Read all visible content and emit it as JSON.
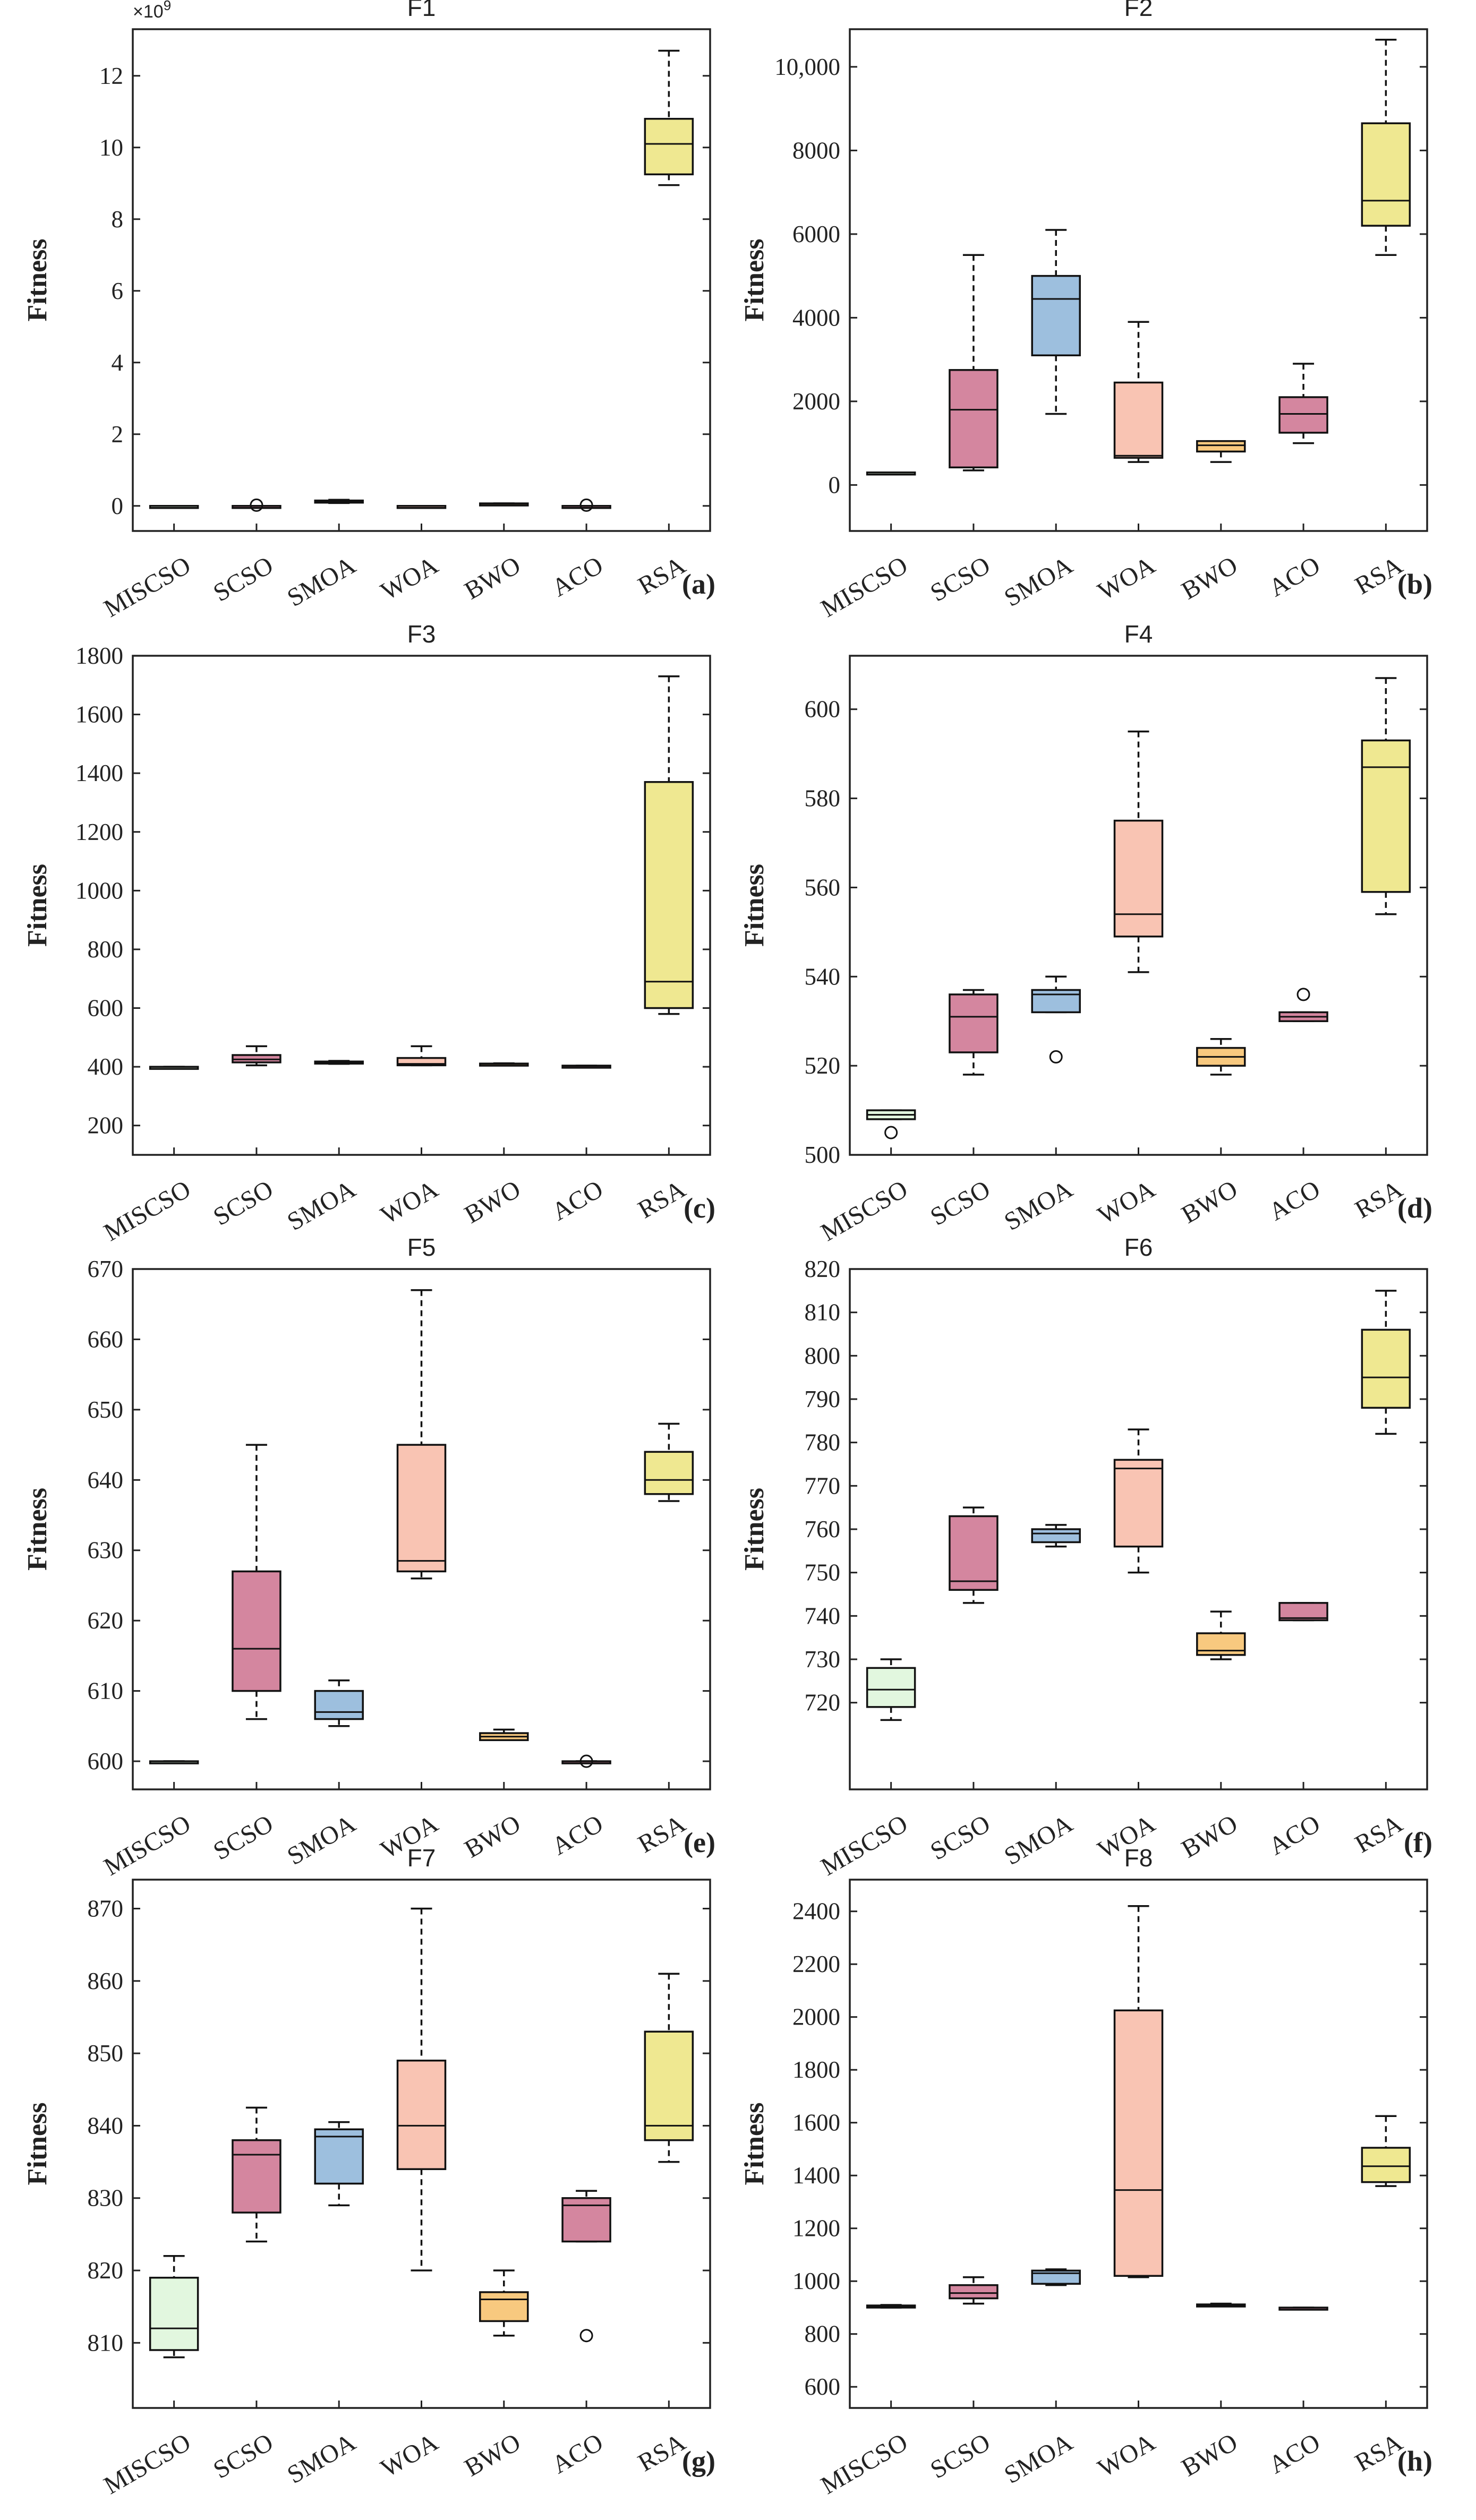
{
  "colors": {
    "MISCSO": "#e2f7df",
    "SCSO": "#d4869f",
    "SMOA": "#9dbfde",
    "WOA": "#f9c4b3",
    "BWO": "#f8c97f",
    "ACO": "#d4869f",
    "RSA": "#efe891",
    "axis": "#222222"
  },
  "chart_data": [
    {
      "type": "box",
      "title": "F1",
      "panel_label": "(a)",
      "ylabel": "Fitness",
      "multiplier": "×10",
      "multiplier_exp": "9",
      "ylim": [
        -0.7,
        13.3
      ],
      "yticks": [
        0,
        2,
        4,
        6,
        8,
        10,
        12
      ],
      "ytick_labels": [
        "0",
        "2",
        "4",
        "6",
        "8",
        "10",
        "12"
      ],
      "categories": [
        "MISCSO",
        "SCSO",
        "SMOA",
        "WOA",
        "BWO",
        "ACO",
        "RSA"
      ],
      "boxes": [
        {
          "min": 0.0,
          "q1": 0.0,
          "median": 0.0,
          "q3": 0.0,
          "max": 0.0,
          "outliers": []
        },
        {
          "min": 0.0,
          "q1": 0.0,
          "median": 0.0,
          "q3": 0.0,
          "max": 0.0,
          "outliers": [
            0.02
          ]
        },
        {
          "min": 0.08,
          "q1": 0.09,
          "median": 0.12,
          "q3": 0.15,
          "max": 0.17,
          "outliers": []
        },
        {
          "min": 0.0,
          "q1": 0.0,
          "median": 0.0,
          "q3": 0.0,
          "max": 0.0,
          "outliers": []
        },
        {
          "min": 0.05,
          "q1": 0.05,
          "median": 0.06,
          "q3": 0.07,
          "max": 0.07,
          "outliers": []
        },
        {
          "min": 0.0,
          "q1": 0.0,
          "median": 0.0,
          "q3": 0.0,
          "max": 0.0,
          "outliers": [
            0.02
          ]
        },
        {
          "min": 8.95,
          "q1": 9.25,
          "median": 10.1,
          "q3": 10.8,
          "max": 12.7,
          "outliers": []
        }
      ]
    },
    {
      "type": "box",
      "title": "F2",
      "panel_label": "(b)",
      "ylabel": "Fitness",
      "ylim": [
        -1100,
        10900
      ],
      "yticks": [
        0,
        2000,
        4000,
        6000,
        8000,
        10000
      ],
      "ytick_labels": [
        "0",
        "2000",
        "4000",
        "6000",
        "8000",
        "10,000"
      ],
      "categories": [
        "MISCSO",
        "SCSO",
        "SMOA",
        "WOA",
        "BWO",
        "ACO",
        "RSA"
      ],
      "boxes": [
        {
          "min": 300,
          "q1": 300,
          "median": 300,
          "q3": 300,
          "max": 300,
          "outliers": []
        },
        {
          "min": 350,
          "q1": 420,
          "median": 1800,
          "q3": 2750,
          "max": 5500,
          "outliers": []
        },
        {
          "min": 1700,
          "q1": 3100,
          "median": 4450,
          "q3": 5000,
          "max": 6100,
          "outliers": []
        },
        {
          "min": 550,
          "q1": 650,
          "median": 700,
          "q3": 2450,
          "max": 3900,
          "outliers": []
        },
        {
          "min": 550,
          "q1": 800,
          "median": 950,
          "q3": 1050,
          "max": 1050,
          "outliers": []
        },
        {
          "min": 1000,
          "q1": 1250,
          "median": 1700,
          "q3": 2100,
          "max": 2900,
          "outliers": []
        },
        {
          "min": 5500,
          "q1": 6200,
          "median": 6800,
          "q3": 8650,
          "max": 10650,
          "outliers": []
        }
      ]
    },
    {
      "type": "box",
      "title": "F3",
      "panel_label": "(c)",
      "ylabel": "Fitness",
      "ylim": [
        100,
        1800
      ],
      "yticks": [
        200,
        400,
        600,
        800,
        1000,
        1200,
        1400,
        1600,
        1800
      ],
      "ytick_labels": [
        "200",
        "400",
        "600",
        "800",
        "1000",
        "1200",
        "1400",
        "1600",
        "1800"
      ],
      "categories": [
        "MISCSO",
        "SCSO",
        "SMOA",
        "WOA",
        "BWO",
        "ACO",
        "RSA"
      ],
      "boxes": [
        {
          "min": 400,
          "q1": 400,
          "median": 400,
          "q3": 400,
          "max": 400,
          "outliers": []
        },
        {
          "min": 405,
          "q1": 415,
          "median": 425,
          "q3": 440,
          "max": 470,
          "outliers": []
        },
        {
          "min": 410,
          "q1": 412,
          "median": 415,
          "q3": 418,
          "max": 420,
          "outliers": []
        },
        {
          "min": 405,
          "q1": 405,
          "median": 410,
          "q3": 430,
          "max": 470,
          "outliers": []
        },
        {
          "min": 408,
          "q1": 409,
          "median": 410,
          "q3": 411,
          "max": 412,
          "outliers": []
        },
        {
          "min": 403,
          "q1": 403,
          "median": 403,
          "q3": 404,
          "max": 404,
          "outliers": []
        },
        {
          "min": 580,
          "q1": 600,
          "median": 690,
          "q3": 1370,
          "max": 1730,
          "outliers": []
        }
      ]
    },
    {
      "type": "box",
      "title": "F4",
      "panel_label": "(d)",
      "ylabel": "Fitness",
      "ylim": [
        500,
        612
      ],
      "yticks": [
        500,
        520,
        540,
        560,
        580,
        600
      ],
      "ytick_labels": [
        "500",
        "520",
        "540",
        "560",
        "580",
        "600"
      ],
      "categories": [
        "MISCSO",
        "SCSO",
        "SMOA",
        "WOA",
        "BWO",
        "ACO",
        "RSA"
      ],
      "boxes": [
        {
          "min": 508,
          "q1": 508,
          "median": 509,
          "q3": 510,
          "max": 510,
          "outliers": [
            505
          ]
        },
        {
          "min": 518,
          "q1": 523,
          "median": 531,
          "q3": 536,
          "max": 537,
          "outliers": []
        },
        {
          "min": 532,
          "q1": 532,
          "median": 536,
          "q3": 537,
          "max": 540,
          "outliers": [
            522
          ]
        },
        {
          "min": 541,
          "q1": 549,
          "median": 554,
          "q3": 575,
          "max": 595,
          "outliers": []
        },
        {
          "min": 518,
          "q1": 520,
          "median": 522,
          "q3": 524,
          "max": 526,
          "outliers": []
        },
        {
          "min": 530,
          "q1": 530,
          "median": 531,
          "q3": 532,
          "max": 532,
          "outliers": [
            536
          ]
        },
        {
          "min": 554,
          "q1": 559,
          "median": 587,
          "q3": 593,
          "max": 607,
          "outliers": []
        }
      ]
    },
    {
      "type": "box",
      "title": "F5",
      "panel_label": "(e)",
      "ylabel": "Fitness",
      "ylim": [
        596,
        670
      ],
      "yticks": [
        600,
        610,
        620,
        630,
        640,
        650,
        660,
        670
      ],
      "ytick_labels": [
        "600",
        "610",
        "620",
        "630",
        "640",
        "650",
        "660",
        "670"
      ],
      "categories": [
        "MISCSO",
        "SCSO",
        "SMOA",
        "WOA",
        "BWO",
        "ACO",
        "RSA"
      ],
      "boxes": [
        {
          "min": 600,
          "q1": 600,
          "median": 600,
          "q3": 600,
          "max": 600,
          "outliers": []
        },
        {
          "min": 606,
          "q1": 610,
          "median": 616,
          "q3": 627,
          "max": 645,
          "outliers": []
        },
        {
          "min": 605,
          "q1": 606,
          "median": 607,
          "q3": 610,
          "max": 611.5,
          "outliers": []
        },
        {
          "min": 626,
          "q1": 627,
          "median": 628.5,
          "q3": 645,
          "max": 667,
          "outliers": []
        },
        {
          "min": 603,
          "q1": 603,
          "median": 603.5,
          "q3": 604,
          "max": 604.5,
          "outliers": []
        },
        {
          "min": 600,
          "q1": 600,
          "median": 600,
          "q3": 600,
          "max": 600,
          "outliers": [
            600
          ]
        },
        {
          "min": 637,
          "q1": 638,
          "median": 640,
          "q3": 644,
          "max": 648,
          "outliers": []
        }
      ]
    },
    {
      "type": "box",
      "title": "F6",
      "panel_label": "(f)",
      "ylabel": "Fitness",
      "ylim": [
        700,
        820
      ],
      "yticks": [
        720,
        730,
        740,
        750,
        760,
        770,
        780,
        790,
        800,
        810,
        820
      ],
      "ytick_labels": [
        "720",
        "730",
        "740",
        "750",
        "760",
        "770",
        "780",
        "790",
        "800",
        "810",
        "820"
      ],
      "categories": [
        "MISCSO",
        "SCSO",
        "SMOA",
        "WOA",
        "BWO",
        "ACO",
        "RSA"
      ],
      "boxes": [
        {
          "min": 716,
          "q1": 719,
          "median": 723,
          "q3": 728,
          "max": 730,
          "outliers": []
        },
        {
          "min": 743,
          "q1": 746,
          "median": 748,
          "q3": 763,
          "max": 765,
          "outliers": []
        },
        {
          "min": 756,
          "q1": 757,
          "median": 759,
          "q3": 760,
          "max": 761,
          "outliers": []
        },
        {
          "min": 750,
          "q1": 756,
          "median": 774,
          "q3": 776,
          "max": 783,
          "outliers": []
        },
        {
          "min": 730,
          "q1": 731,
          "median": 732,
          "q3": 736,
          "max": 741,
          "outliers": []
        },
        {
          "min": 739,
          "q1": 739,
          "median": 739.5,
          "q3": 743,
          "max": 743,
          "outliers": []
        },
        {
          "min": 782,
          "q1": 788,
          "median": 795,
          "q3": 806,
          "max": 815,
          "outliers": []
        }
      ]
    },
    {
      "type": "box",
      "title": "F7",
      "panel_label": "(g)",
      "ylabel": "Fitness",
      "ylim": [
        801,
        874
      ],
      "yticks": [
        810,
        820,
        830,
        840,
        850,
        860,
        870
      ],
      "ytick_labels": [
        "810",
        "820",
        "830",
        "840",
        "850",
        "860",
        "870"
      ],
      "categories": [
        "MISCSO",
        "SCSO",
        "SMOA",
        "WOA",
        "BWO",
        "ACO",
        "RSA"
      ],
      "boxes": [
        {
          "min": 808,
          "q1": 809,
          "median": 812,
          "q3": 819,
          "max": 822,
          "outliers": []
        },
        {
          "min": 824,
          "q1": 828,
          "median": 836,
          "q3": 838,
          "max": 842.5,
          "outliers": []
        },
        {
          "min": 829,
          "q1": 832,
          "median": 838.5,
          "q3": 839.5,
          "max": 840.5,
          "outliers": []
        },
        {
          "min": 820,
          "q1": 834,
          "median": 840,
          "q3": 849,
          "max": 870,
          "outliers": []
        },
        {
          "min": 811,
          "q1": 813,
          "median": 816,
          "q3": 817,
          "max": 820,
          "outliers": []
        },
        {
          "min": 824,
          "q1": 824,
          "median": 829,
          "q3": 830,
          "max": 831,
          "outliers": [
            811
          ]
        },
        {
          "min": 835,
          "q1": 838,
          "median": 840,
          "q3": 853,
          "max": 861,
          "outliers": []
        }
      ]
    },
    {
      "type": "box",
      "title": "F8",
      "panel_label": "(h)",
      "ylabel": "Fitness",
      "ylim": [
        520,
        2520
      ],
      "yticks": [
        600,
        800,
        1000,
        1200,
        1400,
        1600,
        1800,
        2000,
        2200,
        2400
      ],
      "ytick_labels": [
        "600",
        "800",
        "1000",
        "1200",
        "1400",
        "1600",
        "1800",
        "2000",
        "2200",
        "2400"
      ],
      "categories": [
        "MISCSO",
        "SCSO",
        "SMOA",
        "WOA",
        "BWO",
        "ACO",
        "RSA"
      ],
      "boxes": [
        {
          "min": 900,
          "q1": 903,
          "median": 905,
          "q3": 908,
          "max": 910,
          "outliers": []
        },
        {
          "min": 915,
          "q1": 935,
          "median": 955,
          "q3": 985,
          "max": 1015,
          "outliers": []
        },
        {
          "min": 985,
          "q1": 990,
          "median": 1030,
          "q3": 1040,
          "max": 1045,
          "outliers": []
        },
        {
          "min": 1015,
          "q1": 1020,
          "median": 1345,
          "q3": 2025,
          "max": 2420,
          "outliers": []
        },
        {
          "min": 905,
          "q1": 908,
          "median": 910,
          "q3": 912,
          "max": 915,
          "outliers": []
        },
        {
          "min": 900,
          "q1": 900,
          "median": 900,
          "q3": 900,
          "max": 900,
          "outliers": []
        },
        {
          "min": 1360,
          "q1": 1375,
          "median": 1435,
          "q3": 1505,
          "max": 1625,
          "outliers": []
        }
      ]
    }
  ]
}
